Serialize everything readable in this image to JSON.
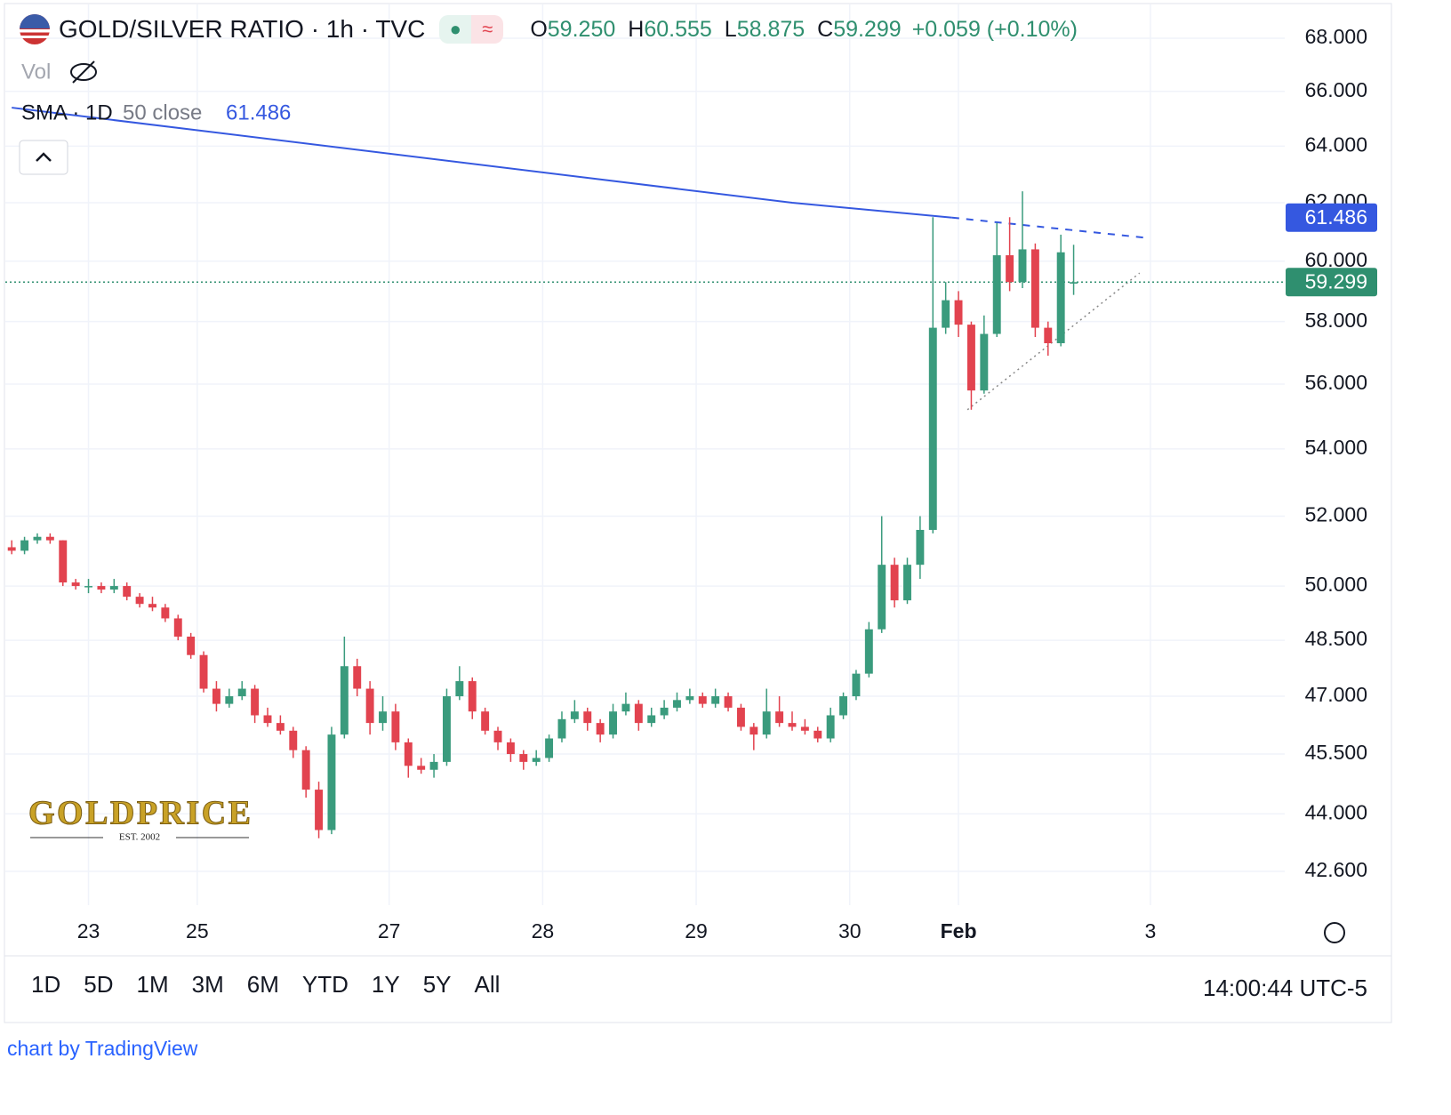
{
  "chart_data": {
    "type": "candlestick",
    "title": "GOLD/SILVER RATIO · 1h · TVC",
    "ohlc_legend": [
      {
        "key": "O",
        "value": "59.250"
      },
      {
        "key": "H",
        "value": "60.555"
      },
      {
        "key": "L",
        "value": "58.875"
      },
      {
        "key": "C",
        "value": "59.299"
      }
    ],
    "change": "+0.059 (+0.10%)",
    "volume_label": "Vol",
    "log_scale": true,
    "grid": true,
    "up_color": "#3a9b7d",
    "down_color": "#e2434f",
    "xlim": [
      -1,
      199
    ],
    "xticks": [
      {
        "value": 12,
        "label": "23"
      },
      {
        "value": 29,
        "label": "25"
      },
      {
        "value": 59,
        "label": "27"
      },
      {
        "value": 83,
        "label": "28"
      },
      {
        "value": 107,
        "label": "29"
      },
      {
        "value": 131,
        "label": "30"
      },
      {
        "value": 148,
        "label": "Feb"
      },
      {
        "value": 178,
        "label": "3"
      }
    ],
    "ylim": [
      41.8,
      69.3
    ],
    "yticks": [
      {
        "value": 68,
        "label": "68.000"
      },
      {
        "value": 66,
        "label": "66.000"
      },
      {
        "value": 64,
        "label": "64.000"
      },
      {
        "value": 62,
        "label": "62.000"
      },
      {
        "value": 60,
        "label": "60.000"
      },
      {
        "value": 58,
        "label": "58.000"
      },
      {
        "value": 56,
        "label": "56.000"
      },
      {
        "value": 54,
        "label": "54.000"
      },
      {
        "value": 52,
        "label": "52.000"
      },
      {
        "value": 50,
        "label": "50.000"
      },
      {
        "value": 48.5,
        "label": "48.500"
      },
      {
        "value": 47,
        "label": "47.000"
      },
      {
        "value": 45.5,
        "label": "45.500"
      },
      {
        "value": 44,
        "label": "44.000"
      },
      {
        "value": 42.6,
        "label": "42.600"
      }
    ],
    "x": [
      0,
      2,
      4,
      6,
      8,
      10,
      12,
      14,
      16,
      18,
      20,
      22,
      24,
      26,
      28,
      30,
      32,
      34,
      36,
      38,
      40,
      42,
      44,
      46,
      48,
      50,
      52,
      54,
      56,
      58,
      60,
      62,
      64,
      66,
      68,
      70,
      72,
      74,
      76,
      78,
      80,
      82,
      84,
      86,
      88,
      90,
      92,
      94,
      96,
      98,
      100,
      102,
      104,
      106,
      108,
      110,
      112,
      114,
      116,
      118,
      120,
      122,
      124,
      126,
      128,
      130,
      132,
      134,
      136,
      138,
      140,
      142,
      144,
      146,
      148,
      150,
      152,
      154,
      156,
      158,
      160,
      162,
      164,
      166
    ],
    "candles": [
      [
        51.1,
        51.3,
        50.9,
        51.0
      ],
      [
        51.0,
        51.4,
        50.9,
        51.3
      ],
      [
        51.3,
        51.5,
        51.2,
        51.4
      ],
      [
        51.4,
        51.5,
        51.2,
        51.3
      ],
      [
        51.3,
        51.3,
        50.0,
        50.1
      ],
      [
        50.1,
        50.2,
        49.9,
        50.0
      ],
      [
        50.0,
        50.2,
        49.8,
        50.0
      ],
      [
        50.0,
        50.1,
        49.8,
        49.9
      ],
      [
        49.9,
        50.2,
        49.8,
        50.0
      ],
      [
        50.0,
        50.1,
        49.6,
        49.7
      ],
      [
        49.7,
        49.8,
        49.4,
        49.5
      ],
      [
        49.5,
        49.7,
        49.3,
        49.4
      ],
      [
        49.4,
        49.5,
        49.0,
        49.1
      ],
      [
        49.1,
        49.2,
        48.5,
        48.6
      ],
      [
        48.6,
        48.7,
        48.0,
        48.1
      ],
      [
        48.1,
        48.2,
        47.1,
        47.2
      ],
      [
        47.2,
        47.4,
        46.6,
        46.8
      ],
      [
        46.8,
        47.2,
        46.7,
        47.0
      ],
      [
        47.0,
        47.4,
        46.9,
        47.2
      ],
      [
        47.2,
        47.3,
        46.3,
        46.5
      ],
      [
        46.5,
        46.7,
        46.2,
        46.3
      ],
      [
        46.3,
        46.5,
        46.0,
        46.1
      ],
      [
        46.1,
        46.2,
        45.4,
        45.6
      ],
      [
        45.6,
        45.7,
        44.4,
        44.6
      ],
      [
        44.6,
        44.8,
        43.4,
        43.6
      ],
      [
        43.6,
        46.2,
        43.5,
        46.0
      ],
      [
        46.0,
        48.6,
        45.9,
        47.8
      ],
      [
        47.8,
        48.0,
        47.0,
        47.2
      ],
      [
        47.2,
        47.4,
        46.0,
        46.3
      ],
      [
        46.3,
        47.0,
        46.1,
        46.6
      ],
      [
        46.6,
        46.8,
        45.6,
        45.8
      ],
      [
        45.8,
        45.9,
        44.9,
        45.2
      ],
      [
        45.2,
        45.4,
        45.0,
        45.1
      ],
      [
        45.1,
        45.5,
        44.9,
        45.3
      ],
      [
        45.3,
        47.2,
        45.2,
        47.0
      ],
      [
        47.0,
        47.8,
        46.9,
        47.4
      ],
      [
        47.4,
        47.5,
        46.4,
        46.6
      ],
      [
        46.6,
        46.7,
        46.0,
        46.1
      ],
      [
        46.1,
        46.2,
        45.6,
        45.8
      ],
      [
        45.8,
        45.9,
        45.3,
        45.5
      ],
      [
        45.5,
        45.6,
        45.1,
        45.3
      ],
      [
        45.3,
        45.6,
        45.2,
        45.4
      ],
      [
        45.4,
        46.0,
        45.3,
        45.9
      ],
      [
        45.9,
        46.6,
        45.8,
        46.4
      ],
      [
        46.4,
        46.9,
        46.3,
        46.6
      ],
      [
        46.6,
        46.7,
        46.1,
        46.3
      ],
      [
        46.3,
        46.4,
        45.8,
        46.0
      ],
      [
        46.0,
        46.8,
        45.9,
        46.6
      ],
      [
        46.6,
        47.1,
        46.5,
        46.8
      ],
      [
        46.8,
        46.9,
        46.1,
        46.3
      ],
      [
        46.3,
        46.7,
        46.2,
        46.5
      ],
      [
        46.5,
        46.9,
        46.4,
        46.7
      ],
      [
        46.7,
        47.1,
        46.6,
        46.9
      ],
      [
        46.9,
        47.2,
        46.8,
        47.0
      ],
      [
        47.0,
        47.1,
        46.7,
        46.8
      ],
      [
        46.8,
        47.2,
        46.7,
        47.0
      ],
      [
        47.0,
        47.1,
        46.6,
        46.7
      ],
      [
        46.7,
        46.8,
        46.1,
        46.2
      ],
      [
        46.2,
        46.3,
        45.6,
        46.0
      ],
      [
        46.0,
        47.2,
        45.9,
        46.6
      ],
      [
        46.6,
        47.0,
        46.2,
        46.3
      ],
      [
        46.3,
        46.6,
        46.1,
        46.2
      ],
      [
        46.2,
        46.4,
        46.0,
        46.1
      ],
      [
        46.1,
        46.2,
        45.8,
        45.9
      ],
      [
        45.9,
        46.7,
        45.8,
        46.5
      ],
      [
        46.5,
        47.1,
        46.4,
        47.0
      ],
      [
        47.0,
        47.7,
        46.9,
        47.6
      ],
      [
        47.6,
        49.0,
        47.5,
        48.8
      ],
      [
        48.8,
        52.0,
        48.7,
        50.6
      ],
      [
        50.6,
        50.8,
        49.4,
        49.6
      ],
      [
        49.6,
        50.8,
        49.5,
        50.6
      ],
      [
        50.6,
        52.0,
        50.2,
        51.6
      ],
      [
        51.6,
        61.5,
        51.5,
        57.8
      ],
      [
        57.8,
        59.3,
        57.6,
        58.7
      ],
      [
        58.7,
        59.0,
        57.5,
        57.9
      ],
      [
        57.9,
        58.0,
        55.2,
        55.8
      ],
      [
        55.8,
        58.2,
        55.7,
        57.6
      ],
      [
        57.6,
        61.3,
        57.5,
        60.2
      ],
      [
        60.2,
        61.5,
        59.0,
        59.3
      ],
      [
        59.3,
        62.4,
        59.1,
        60.4
      ],
      [
        60.4,
        60.6,
        57.5,
        57.8
      ],
      [
        57.8,
        58.0,
        56.9,
        57.3
      ],
      [
        57.3,
        60.9,
        57.2,
        60.3
      ],
      [
        59.25,
        60.555,
        58.875,
        59.299
      ]
    ],
    "sma": {
      "label": "SMA · 1D",
      "params": "50 close",
      "value_label": "61.486",
      "color": "#3558e0",
      "x": [
        0,
        122,
        147
      ],
      "values": [
        65.4,
        62.0,
        61.486
      ],
      "projection": {
        "x": [
          147,
          177
        ],
        "values": [
          61.486,
          60.8
        ]
      }
    },
    "last_price": {
      "value": 59.299,
      "label": "59.299",
      "color": "#2f8f6f"
    },
    "trendline": {
      "x": [
        149.4,
        176.3
      ],
      "values": [
        55.2,
        59.6
      ],
      "color": "#888888"
    },
    "logo": "GOLDPRICE",
    "logo_sub": "EST. 2002"
  },
  "toolbar": {
    "ranges": [
      "1D",
      "5D",
      "1M",
      "3M",
      "6M",
      "YTD",
      "1Y",
      "5Y",
      "All"
    ],
    "clock": "14:00:44 UTC-5"
  },
  "footer": "chart by TradingView"
}
